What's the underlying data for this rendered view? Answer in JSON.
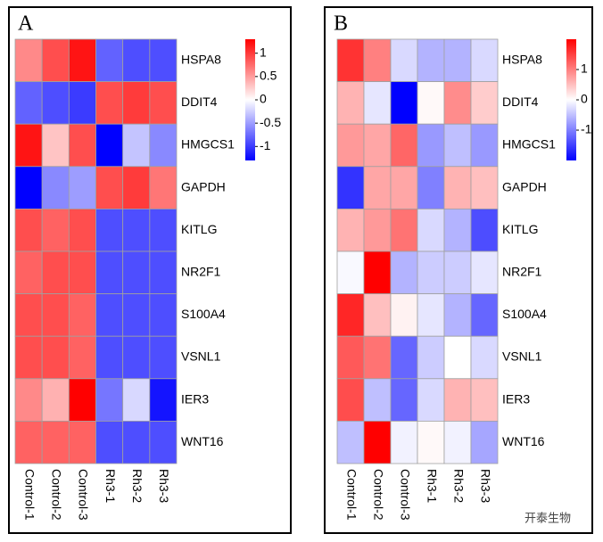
{
  "chart_data": [
    {
      "type": "heatmap",
      "panel": "A",
      "x": [
        "Control-1",
        "Control-2",
        "Control-3",
        "Rh3-1",
        "Rh3-2",
        "Rh3-3"
      ],
      "y": [
        "HSPA8",
        "DDIT4",
        "HMGCS1",
        "GAPDH",
        "KITLG",
        "NR2F1",
        "S100A4",
        "VSNL1",
        "IER3",
        "WNT16"
      ],
      "values": [
        [
          0.6,
          0.9,
          1.2,
          -0.8,
          -0.9,
          -0.9
        ],
        [
          -0.8,
          -0.9,
          -1.0,
          0.9,
          1.0,
          0.9
        ],
        [
          1.2,
          0.3,
          0.9,
          -1.3,
          -0.3,
          -0.6
        ],
        [
          -1.3,
          -0.6,
          -0.5,
          0.9,
          1.0,
          0.7
        ],
        [
          0.9,
          0.8,
          0.9,
          -0.9,
          -0.9,
          -0.9
        ],
        [
          0.8,
          0.9,
          0.9,
          -0.9,
          -0.9,
          -0.9
        ],
        [
          0.9,
          0.9,
          0.8,
          -0.9,
          -0.9,
          -0.9
        ],
        [
          0.9,
          0.9,
          0.8,
          -0.9,
          -0.9,
          -0.9
        ],
        [
          0.6,
          0.4,
          1.3,
          -0.7,
          -0.2,
          -1.2
        ],
        [
          0.8,
          0.8,
          0.8,
          -0.9,
          -0.9,
          -0.9
        ]
      ],
      "colors": [
        "#0000ff",
        "#ffffff",
        "#ff0000"
      ],
      "clim": [
        -1.3,
        1.3
      ],
      "cticks": [
        1,
        0.5,
        0,
        -0.5,
        -1
      ]
    },
    {
      "type": "heatmap",
      "panel": "B",
      "x": [
        "Control-1",
        "Control-2",
        "Control-3",
        "Rh3-1",
        "Rh3-2",
        "Rh3-3"
      ],
      "y": [
        "HSPA8",
        "DDIT4",
        "HMGCS1",
        "GAPDH",
        "KITLG",
        "NR2F1",
        "S100A4",
        "VSNL1",
        "IER3",
        "WNT16"
      ],
      "values": [
        [
          1.6,
          1.0,
          -0.3,
          -0.6,
          -0.6,
          -0.3
        ],
        [
          0.6,
          -0.2,
          -2.0,
          0.05,
          0.9,
          0.4
        ],
        [
          0.8,
          0.7,
          1.2,
          -0.8,
          -0.5,
          -0.8
        ],
        [
          -1.6,
          0.7,
          0.7,
          -1.0,
          0.6,
          0.5
        ],
        [
          0.6,
          0.8,
          1.1,
          -0.3,
          -0.6,
          -1.4
        ],
        [
          -0.05,
          2.0,
          -0.6,
          -0.4,
          -0.4,
          -0.2
        ],
        [
          1.7,
          0.5,
          0.1,
          -0.2,
          -0.6,
          -1.2
        ],
        [
          1.3,
          1.1,
          -1.2,
          -0.4,
          0.0,
          -0.3
        ],
        [
          1.4,
          -0.5,
          -1.2,
          -0.3,
          0.6,
          0.5
        ],
        [
          -0.5,
          2.0,
          -0.1,
          0.05,
          -0.1,
          -0.7
        ]
      ],
      "colors": [
        "#0000ff",
        "#ffffff",
        "#ff0000"
      ],
      "clim": [
        -2,
        2
      ],
      "cticks": [
        1,
        0,
        -1
      ]
    }
  ],
  "watermark": "开泰生物"
}
